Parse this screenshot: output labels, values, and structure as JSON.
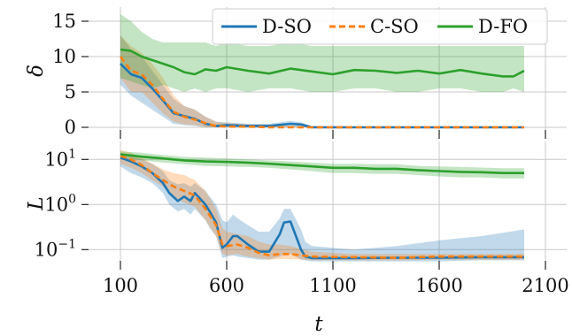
{
  "chart_data": {
    "type": "line",
    "x_ticks": [
      100,
      600,
      1100,
      1600,
      2100
    ],
    "xlabel": "t",
    "xlim": [
      -50,
      2200
    ],
    "grid": true,
    "legend": {
      "placement": "top-right",
      "entries": [
        {
          "name": "D-SO",
          "color": "#1f77b4",
          "style": "solid"
        },
        {
          "name": "C-SO",
          "color": "#ff7f0e",
          "style": "dashed"
        },
        {
          "name": "D-FO",
          "color": "#2ca02c",
          "style": "solid"
        }
      ]
    },
    "subplots": [
      {
        "ylabel": "δ",
        "scale": "linear",
        "ylim": [
          -1,
          17
        ],
        "y_ticks": [
          {
            "value": 0,
            "label": "0"
          },
          {
            "value": 5,
            "label": "5"
          },
          {
            "value": 10,
            "label": "10"
          },
          {
            "value": 15,
            "label": "15"
          }
        ],
        "series": [
          {
            "name": "D-SO",
            "color": "#1f77b4",
            "dash": false,
            "x": [
              100,
              150,
              200,
              250,
              300,
              350,
              400,
              450,
              500,
              550,
              600,
              700,
              800,
              900,
              950,
              1000,
              1200,
              1400,
              1600,
              1800,
              2000
            ],
            "y": [
              9,
              7.5,
              7,
              5.5,
              3.8,
              2,
              1.6,
              1.2,
              0.5,
              0.2,
              0.3,
              0.2,
              0.2,
              0.5,
              0.4,
              0,
              0,
              0,
              0,
              0,
              0
            ],
            "band_low": [
              6,
              4.5,
              3.5,
              2.5,
              1.5,
              0.5,
              0.3,
              0.2,
              0,
              0,
              0,
              0,
              0,
              0,
              0,
              0,
              0,
              0,
              0,
              0,
              0
            ],
            "band_high": [
              13,
              11,
              10,
              8,
              6,
              4,
              3,
              2.5,
              1.5,
              0.8,
              0.7,
              0.5,
              0.5,
              0.9,
              0.7,
              0.2,
              0.1,
              0.1,
              0.1,
              0.1,
              0.1
            ]
          },
          {
            "name": "C-SO",
            "color": "#ff7f0e",
            "dash": true,
            "x": [
              100,
              150,
              200,
              250,
              300,
              350,
              400,
              450,
              500,
              550,
              600,
              700,
              800,
              900,
              1000,
              1200,
              1400,
              1600,
              1800,
              2000
            ],
            "y": [
              10,
              8,
              7.5,
              6,
              4,
              2.2,
              1.5,
              1.1,
              0.6,
              0.2,
              0.1,
              0.1,
              0,
              0,
              0,
              0,
              0,
              0,
              0,
              0
            ],
            "band_low": [
              7,
              5,
              5,
              3.5,
              2,
              0.8,
              0.4,
              0.3,
              0,
              0,
              0,
              0,
              0,
              0,
              0,
              0,
              0,
              0,
              0,
              0
            ],
            "band_high": [
              13,
              11.5,
              10.5,
              9,
              7,
              4.5,
              3,
              2.5,
              1.5,
              0.8,
              0.6,
              0.4,
              0.3,
              0.2,
              0.1,
              0.1,
              0.1,
              0.1,
              0.1,
              0.1
            ]
          },
          {
            "name": "D-FO",
            "color": "#2ca02c",
            "dash": false,
            "x": [
              100,
              150,
              200,
              250,
              300,
              350,
              400,
              450,
              500,
              550,
              600,
              700,
              800,
              900,
              1000,
              1100,
              1200,
              1300,
              1400,
              1500,
              1600,
              1700,
              1800,
              1900,
              1950,
              2000
            ],
            "y": [
              11,
              10.8,
              10,
              9.5,
              9,
              8.5,
              7.8,
              7.5,
              8.2,
              8,
              8.5,
              8,
              7.6,
              8.3,
              7.9,
              7.5,
              8.1,
              8,
              7.7,
              8,
              7.6,
              8.1,
              7.6,
              7.2,
              7.2,
              8
            ],
            "band_low": [
              7,
              6.5,
              6,
              5.5,
              6,
              5.5,
              5,
              5.5,
              5,
              5.5,
              5.5,
              5,
              5.5,
              5.5,
              5,
              5,
              5.5,
              5.5,
              5,
              5,
              5.5,
              5.5,
              5,
              5,
              5.5,
              5
            ],
            "band_high": [
              16,
              15,
              13.5,
              12.5,
              12,
              12,
              12,
              12,
              12,
              11.5,
              12,
              11.5,
              11.5,
              12,
              11.5,
              11.5,
              11.5,
              11.5,
              11.5,
              11.5,
              11.5,
              11.5,
              11.5,
              11.5,
              11.5,
              11.5
            ]
          }
        ]
      },
      {
        "ylabel": "L",
        "scale": "log",
        "ylim": [
          0.045,
          25
        ],
        "y_ticks": [
          {
            "value": 0.1,
            "base": "10",
            "exp": "−1"
          },
          {
            "value": 1,
            "base": "10",
            "exp": "0"
          },
          {
            "value": 10,
            "base": "10",
            "exp": "1"
          }
        ],
        "series": [
          {
            "name": "D-SO",
            "color": "#1f77b4",
            "dash": false,
            "x": [
              100,
              150,
              200,
              250,
              300,
              330,
              370,
              400,
              430,
              450,
              500,
              520,
              550,
              580,
              600,
              630,
              650,
              700,
              750,
              800,
              850,
              870,
              900,
              950,
              970,
              1000,
              1200,
              1400,
              1600,
              1800,
              2000
            ],
            "y": [
              11,
              9,
              7,
              5,
              3,
              1.8,
              1.2,
              1.5,
              1.2,
              1.8,
              1,
              0.7,
              0.4,
              0.11,
              0.13,
              0.2,
              0.2,
              0.13,
              0.09,
              0.09,
              0.22,
              0.4,
              0.42,
              0.1,
              0.07,
              0.065,
              0.065,
              0.066,
              0.066,
              0.068,
              0.068
            ],
            "band_low": [
              7,
              5,
              4,
              3,
              1.8,
              1,
              0.7,
              0.8,
              0.6,
              0.8,
              0.45,
              0.3,
              0.2,
              0.065,
              0.07,
              0.075,
              0.07,
              0.065,
              0.06,
              0.06,
              0.07,
              0.08,
              0.08,
              0.06,
              0.058,
              0.055,
              0.055,
              0.055,
              0.055,
              0.058,
              0.058
            ],
            "band_high": [
              14,
              12,
              10,
              8,
              5.5,
              3.5,
              2.8,
              3,
              2.5,
              3,
              2,
              1.5,
              1,
              0.45,
              0.4,
              0.6,
              0.5,
              0.35,
              0.25,
              0.25,
              0.5,
              0.8,
              0.8,
              0.28,
              0.15,
              0.12,
              0.1,
              0.12,
              0.16,
              0.2,
              0.28
            ]
          },
          {
            "name": "C-SO",
            "color": "#ff7f0e",
            "dash": true,
            "x": [
              100,
              150,
              200,
              250,
              300,
              350,
              400,
              450,
              500,
              550,
              580,
              600,
              650,
              700,
              750,
              800,
              850,
              900,
              1000,
              1200,
              1400,
              1600,
              1800,
              2000
            ],
            "y": [
              12,
              10,
              7.5,
              5,
              3.5,
              2.5,
              2,
              1.6,
              0.8,
              0.35,
              0.13,
              0.12,
              0.13,
              0.11,
              0.085,
              0.075,
              0.08,
              0.08,
              0.07,
              0.068,
              0.066,
              0.07,
              0.07,
              0.07
            ],
            "band_low": [
              8,
              6.5,
              5,
              3.5,
              2.5,
              1.5,
              1.1,
              0.9,
              0.45,
              0.2,
              0.08,
              0.075,
              0.08,
              0.07,
              0.065,
              0.06,
              0.062,
              0.062,
              0.058,
              0.058,
              0.058,
              0.06,
              0.06,
              0.06
            ],
            "band_high": [
              16,
              14,
              11,
              8,
              6,
              5,
              4.5,
              3.5,
              2,
              0.8,
              0.3,
              0.25,
              0.22,
              0.2,
              0.15,
              0.13,
              0.13,
              0.12,
              0.09,
              0.08,
              0.08,
              0.08,
              0.08,
              0.08
            ]
          },
          {
            "name": "D-FO",
            "color": "#2ca02c",
            "dash": false,
            "x": [
              100,
              200,
              300,
              400,
              500,
              600,
              700,
              800,
              900,
              1000,
              1100,
              1200,
              1300,
              1400,
              1500,
              1600,
              1700,
              1800,
              1900,
              2000
            ],
            "y": [
              13,
              11.5,
              10.5,
              9.5,
              9,
              8.8,
              8.5,
              8,
              7.5,
              7,
              6.5,
              6.5,
              6.2,
              6.2,
              5.8,
              5.5,
              5.3,
              5.2,
              5,
              5
            ],
            "band_low": [
              11,
              9.5,
              8.5,
              7.8,
              7.2,
              7,
              6.8,
              6.5,
              6,
              5.5,
              5,
              5,
              4.8,
              4.8,
              4.5,
              4.2,
              4,
              4,
              3.8,
              3.8
            ],
            "band_high": [
              15,
              14,
              12.5,
              11.5,
              11,
              10.5,
              10,
              9.5,
              9,
              8.5,
              8,
              8,
              7.8,
              7.8,
              7.2,
              7,
              6.8,
              6.6,
              6.4,
              6.4
            ]
          }
        ]
      }
    ]
  }
}
